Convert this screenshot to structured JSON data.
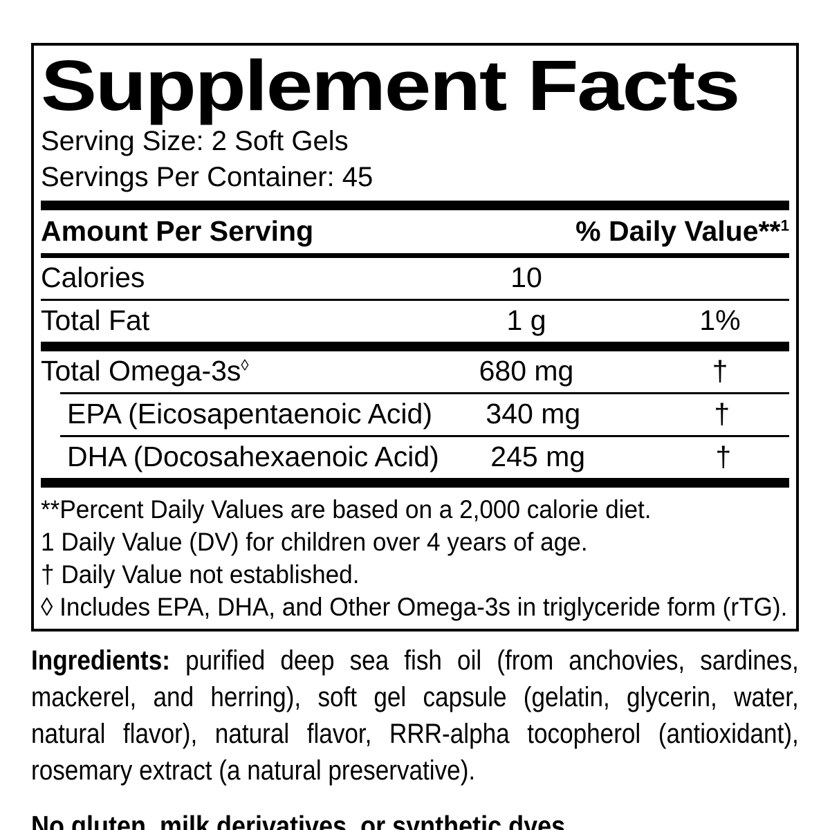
{
  "label": {
    "title": "Supplement Facts",
    "serving_size": "Serving Size: 2 Soft Gels",
    "servings_per_container": "Servings Per Container: 45",
    "header": {
      "amount_col": "Amount Per Serving",
      "dv_col": "% Daily Value**",
      "dv_col_sup": "1"
    },
    "rows": [
      {
        "name": "Calories",
        "sup": "",
        "amount": "10",
        "dv": ""
      },
      {
        "name": "Total Fat",
        "sup": "",
        "amount": "1 g",
        "dv": "1%"
      },
      {
        "name": "Total Omega-3s",
        "sup": "◊",
        "amount": "680 mg",
        "dv": "†"
      },
      {
        "name": "EPA (Eicosapentaenoic Acid)",
        "sup": "",
        "amount": "340 mg",
        "dv": "†"
      },
      {
        "name": "DHA (Docosahexaenoic Acid)",
        "sup": "",
        "amount": "245 mg",
        "dv": "†"
      }
    ],
    "footnotes": [
      "**Percent Daily Values are based on a 2,000 calorie diet.",
      "1 Daily Value (DV) for children over 4 years of age.",
      "† Daily Value not established.",
      "◊ Includes EPA, DHA, and Other Omega-3s in triglyceride form (rTG)."
    ],
    "ingredients_lead": "Ingredients:",
    "ingredients_text": "purified deep sea fish oil (from anchovies, sardines, mackerel, and herring), soft gel capsule (gelatin, glycerin, water, natural flavor), natural flavor, RRR-alpha tocopherol (antioxidant), rosemary extract (a natural preservative).",
    "allergen_statement": "No gluten, milk derivatives, or synthetic dyes.",
    "colors": {
      "text": "#000000",
      "background": "#ffffff"
    }
  }
}
